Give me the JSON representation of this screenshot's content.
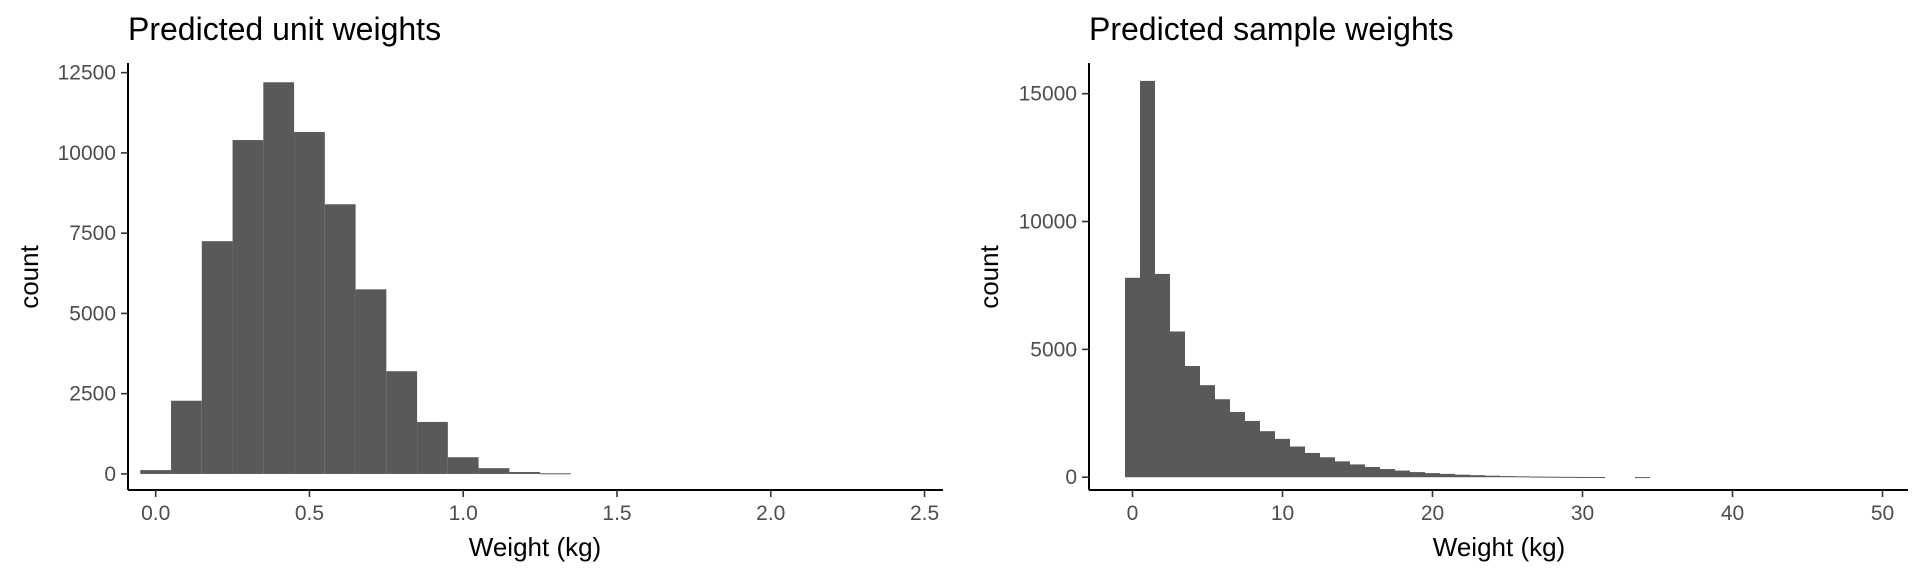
{
  "chart_data": [
    {
      "type": "bar",
      "title": "Predicted unit weights",
      "xlabel": "Weight (kg)",
      "ylabel": "count",
      "xlim": [
        -0.09,
        2.56
      ],
      "ylim": [
        -500,
        12800
      ],
      "xticks": [
        "0.0",
        "0.5",
        "1.0",
        "1.5",
        "2.0",
        "2.5"
      ],
      "yticks": [
        "0",
        "2500",
        "5000",
        "7500",
        "10000",
        "12500"
      ],
      "bin_width": 0.1,
      "bins": [
        {
          "x0": -0.05,
          "x1": 0.05,
          "count": 120
        },
        {
          "x0": 0.05,
          "x1": 0.15,
          "count": 2280
        },
        {
          "x0": 0.15,
          "x1": 0.25,
          "count": 7250
        },
        {
          "x0": 0.25,
          "x1": 0.35,
          "count": 10400
        },
        {
          "x0": 0.35,
          "x1": 0.45,
          "count": 12200
        },
        {
          "x0": 0.45,
          "x1": 0.55,
          "count": 10650
        },
        {
          "x0": 0.55,
          "x1": 0.65,
          "count": 8400
        },
        {
          "x0": 0.65,
          "x1": 0.75,
          "count": 5750
        },
        {
          "x0": 0.75,
          "x1": 0.85,
          "count": 3200
        },
        {
          "x0": 0.85,
          "x1": 0.95,
          "count": 1620
        },
        {
          "x0": 0.95,
          "x1": 1.05,
          "count": 520
        },
        {
          "x0": 1.05,
          "x1": 1.15,
          "count": 180
        },
        {
          "x0": 1.15,
          "x1": 1.25,
          "count": 60
        },
        {
          "x0": 1.25,
          "x1": 1.35,
          "count": 20
        }
      ],
      "grid": false,
      "bar_color": "#595959"
    },
    {
      "type": "bar",
      "title": "Predicted sample weights",
      "xlabel": "Weight (kg)",
      "ylabel": "count",
      "xlim": [
        -2.9,
        51.7
      ],
      "ylim": [
        -500,
        16200
      ],
      "xticks": [
        "0",
        "10",
        "20",
        "30",
        "40",
        "50"
      ],
      "yticks": [
        "0",
        "5000",
        "10000",
        "15000"
      ],
      "bin_width": 1,
      "bins": [
        {
          "x0": -0.5,
          "x1": 0.5,
          "count": 7800
        },
        {
          "x0": 0.5,
          "x1": 1.5,
          "count": 15500
        },
        {
          "x0": 1.5,
          "x1": 2.5,
          "count": 7950
        },
        {
          "x0": 2.5,
          "x1": 3.5,
          "count": 5700
        },
        {
          "x0": 3.5,
          "x1": 4.5,
          "count": 4350
        },
        {
          "x0": 4.5,
          "x1": 5.5,
          "count": 3600
        },
        {
          "x0": 5.5,
          "x1": 6.5,
          "count": 3050
        },
        {
          "x0": 6.5,
          "x1": 7.5,
          "count": 2550
        },
        {
          "x0": 7.5,
          "x1": 8.5,
          "count": 2200
        },
        {
          "x0": 8.5,
          "x1": 9.5,
          "count": 1800
        },
        {
          "x0": 9.5,
          "x1": 10.5,
          "count": 1500
        },
        {
          "x0": 10.5,
          "x1": 11.5,
          "count": 1200
        },
        {
          "x0": 11.5,
          "x1": 12.5,
          "count": 950
        },
        {
          "x0": 12.5,
          "x1": 13.5,
          "count": 780
        },
        {
          "x0": 13.5,
          "x1": 14.5,
          "count": 620
        },
        {
          "x0": 14.5,
          "x1": 15.5,
          "count": 500
        },
        {
          "x0": 15.5,
          "x1": 16.5,
          "count": 400
        },
        {
          "x0": 16.5,
          "x1": 17.5,
          "count": 320
        },
        {
          "x0": 17.5,
          "x1": 18.5,
          "count": 260
        },
        {
          "x0": 18.5,
          "x1": 19.5,
          "count": 200
        },
        {
          "x0": 19.5,
          "x1": 20.5,
          "count": 160
        },
        {
          "x0": 20.5,
          "x1": 21.5,
          "count": 130
        },
        {
          "x0": 21.5,
          "x1": 22.5,
          "count": 100
        },
        {
          "x0": 22.5,
          "x1": 23.5,
          "count": 80
        },
        {
          "x0": 23.5,
          "x1": 24.5,
          "count": 60
        },
        {
          "x0": 24.5,
          "x1": 25.5,
          "count": 45
        },
        {
          "x0": 25.5,
          "x1": 26.5,
          "count": 35
        },
        {
          "x0": 26.5,
          "x1": 27.5,
          "count": 25
        },
        {
          "x0": 27.5,
          "x1": 28.5,
          "count": 20
        },
        {
          "x0": 28.5,
          "x1": 29.5,
          "count": 15
        },
        {
          "x0": 29.5,
          "x1": 30.5,
          "count": 10
        },
        {
          "x0": 30.5,
          "x1": 31.5,
          "count": 8
        },
        {
          "x0": 33.5,
          "x1": 34.5,
          "count": 5
        }
      ],
      "grid": false,
      "bar_color": "#595959"
    }
  ]
}
